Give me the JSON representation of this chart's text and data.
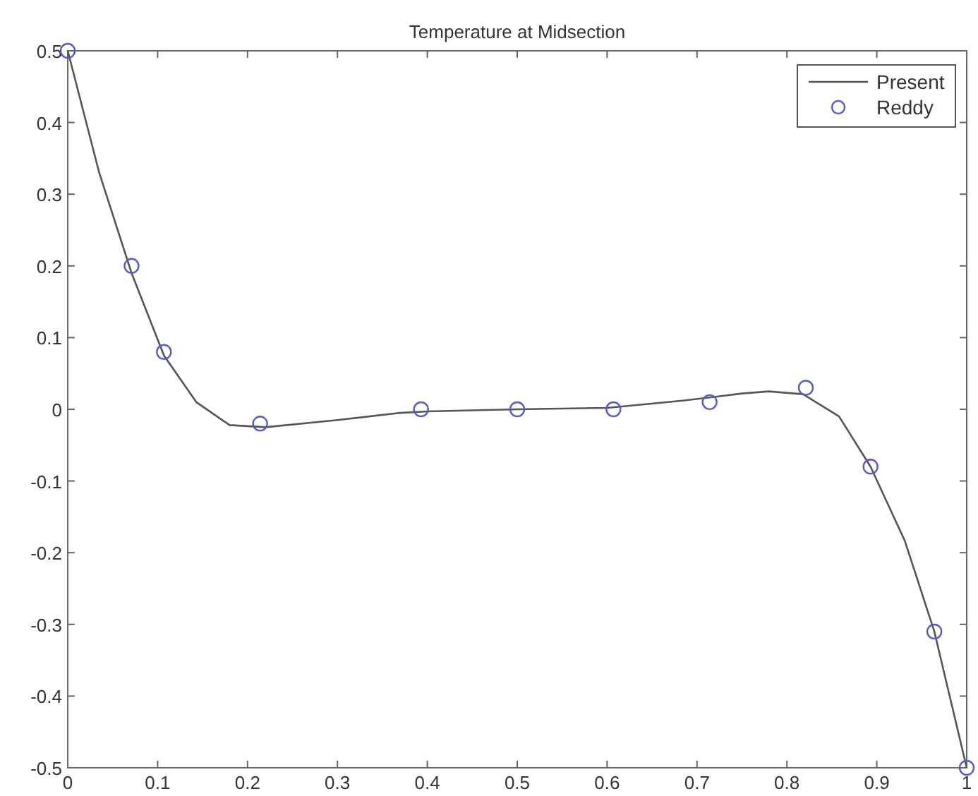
{
  "chart_data": {
    "type": "line",
    "title": "Temperature at Midsection",
    "xlim": [
      0,
      1
    ],
    "ylim": [
      -0.5,
      0.5
    ],
    "xticks": [
      0,
      0.1,
      0.2,
      0.3,
      0.4,
      0.5,
      0.6,
      0.7,
      0.8,
      0.9,
      1
    ],
    "yticks": [
      -0.5,
      -0.4,
      -0.3,
      -0.2,
      -0.1,
      0,
      0.1,
      0.2,
      0.3,
      0.4,
      0.5
    ],
    "grid": false,
    "legend": "top right",
    "series": [
      {
        "name": "Present",
        "color": "#555555",
        "marker": "none",
        "line_style": "solid",
        "x": [
          0,
          0.035,
          0.071,
          0.107,
          0.143,
          0.18,
          0.22,
          0.3,
          0.37,
          0.4,
          0.5,
          0.6,
          0.684,
          0.75,
          0.78,
          0.818,
          0.858,
          0.893,
          0.931,
          0.964,
          1
        ],
        "values": [
          0.5,
          0.33,
          0.19,
          0.075,
          0.01,
          -0.022,
          -0.025,
          -0.015,
          -0.005,
          -0.003,
          0,
          0.002,
          0.012,
          0.022,
          0.025,
          0.021,
          -0.01,
          -0.08,
          -0.183,
          -0.31,
          -0.5
        ]
      },
      {
        "name": "Reddy",
        "type": "scatter",
        "color": "#5a5ac8",
        "marker": "circle",
        "x": [
          0,
          0.071,
          0.107,
          0.214,
          0.393,
          0.5,
          0.607,
          0.714,
          0.821,
          0.893,
          0.964,
          1
        ],
        "values": [
          0.5,
          0.2,
          0.08,
          -0.02,
          0,
          0,
          0,
          0.01,
          0.03,
          -0.08,
          -0.31,
          -0.5
        ]
      }
    ]
  }
}
